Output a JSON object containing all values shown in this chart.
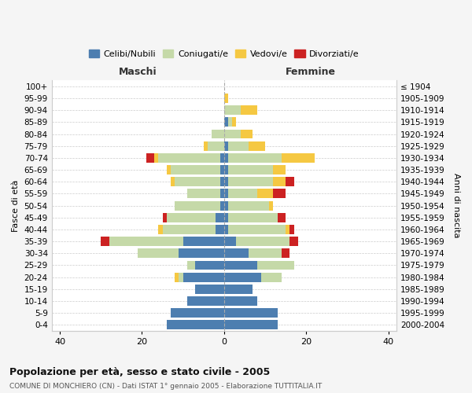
{
  "age_groups": [
    "0-4",
    "5-9",
    "10-14",
    "15-19",
    "20-24",
    "25-29",
    "30-34",
    "35-39",
    "40-44",
    "45-49",
    "50-54",
    "55-59",
    "60-64",
    "65-69",
    "70-74",
    "75-79",
    "80-84",
    "85-89",
    "90-94",
    "95-99",
    "100+"
  ],
  "birth_years": [
    "2000-2004",
    "1995-1999",
    "1990-1994",
    "1985-1989",
    "1980-1984",
    "1975-1979",
    "1970-1974",
    "1965-1969",
    "1960-1964",
    "1955-1959",
    "1950-1954",
    "1945-1949",
    "1940-1944",
    "1935-1939",
    "1930-1934",
    "1925-1929",
    "1920-1924",
    "1915-1919",
    "1910-1914",
    "1905-1909",
    "≤ 1904"
  ],
  "males": {
    "celibi": [
      14,
      13,
      9,
      7,
      10,
      7,
      11,
      10,
      2,
      2,
      1,
      1,
      1,
      1,
      1,
      0,
      0,
      0,
      0,
      0,
      0
    ],
    "coniugati": [
      0,
      0,
      0,
      0,
      1,
      2,
      10,
      18,
      13,
      12,
      11,
      8,
      11,
      12,
      15,
      4,
      3,
      0,
      0,
      0,
      0
    ],
    "vedovi": [
      0,
      0,
      0,
      0,
      1,
      0,
      0,
      0,
      1,
      0,
      0,
      0,
      1,
      1,
      1,
      1,
      0,
      0,
      0,
      0,
      0
    ],
    "divorziati": [
      0,
      0,
      0,
      0,
      0,
      0,
      0,
      2,
      0,
      1,
      0,
      0,
      0,
      0,
      2,
      0,
      0,
      0,
      0,
      0,
      0
    ]
  },
  "females": {
    "nubili": [
      13,
      13,
      8,
      7,
      9,
      8,
      6,
      3,
      1,
      1,
      1,
      1,
      1,
      1,
      1,
      1,
      0,
      1,
      0,
      0,
      0
    ],
    "coniugate": [
      0,
      0,
      0,
      0,
      5,
      9,
      8,
      13,
      14,
      12,
      10,
      7,
      11,
      11,
      13,
      5,
      4,
      1,
      4,
      0,
      0
    ],
    "vedove": [
      0,
      0,
      0,
      0,
      0,
      0,
      0,
      0,
      1,
      0,
      1,
      4,
      3,
      3,
      8,
      4,
      3,
      1,
      4,
      1,
      0
    ],
    "divorziate": [
      0,
      0,
      0,
      0,
      0,
      0,
      2,
      2,
      1,
      2,
      0,
      3,
      2,
      0,
      0,
      0,
      0,
      0,
      0,
      0,
      0
    ]
  },
  "colors": {
    "celibi": "#4d7eb0",
    "coniugati": "#c5d9a8",
    "vedovi": "#f5c842",
    "divorziati": "#cc2222"
  },
  "xlim": [
    -42,
    42
  ],
  "xticks": [
    -40,
    -20,
    0,
    20,
    40
  ],
  "xticklabels": [
    "40",
    "20",
    "0",
    "20",
    "40"
  ],
  "title": "Popolazione per età, sesso e stato civile - 2005",
  "subtitle": "COMUNE DI MONCHIERO (CN) - Dati ISTAT 1° gennaio 2005 - Elaborazione TUTTITALIA.IT",
  "ylabel_left": "Fasce di età",
  "ylabel_right": "Anni di nascita",
  "label_maschi": "Maschi",
  "label_femmine": "Femmine",
  "legend_labels": [
    "Celibi/Nubili",
    "Coniugati/e",
    "Vedovi/e",
    "Divorziati/e"
  ],
  "background_color": "#f5f5f5",
  "plot_background": "#ffffff"
}
